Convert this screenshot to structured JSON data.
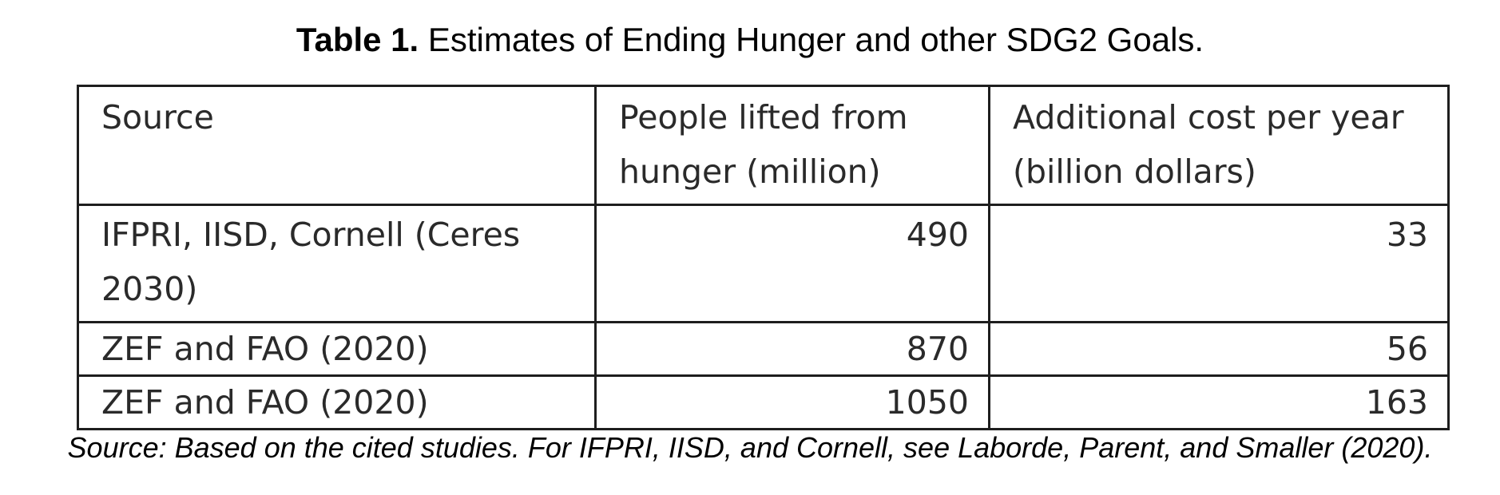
{
  "caption": {
    "label": "Table 1.",
    "text": "Estimates of Ending Hunger and other SDG2 Goals."
  },
  "table": {
    "headers": [
      "Source",
      "People lifted from hunger (million)",
      "Additional cost per year (billion dollars)"
    ],
    "rows": [
      [
        "IFPRI, IISD, Cornell (Ceres 2030)",
        "490",
        "33"
      ],
      [
        "ZEF and FAO (2020)",
        "870",
        "56"
      ],
      [
        "ZEF and FAO (2020)",
        "1050",
        "163"
      ]
    ]
  },
  "footnote": "Source: Based on the cited studies. For IFPRI, IISD, and Cornell, see Laborde, Parent, and Smaller (2020)."
}
